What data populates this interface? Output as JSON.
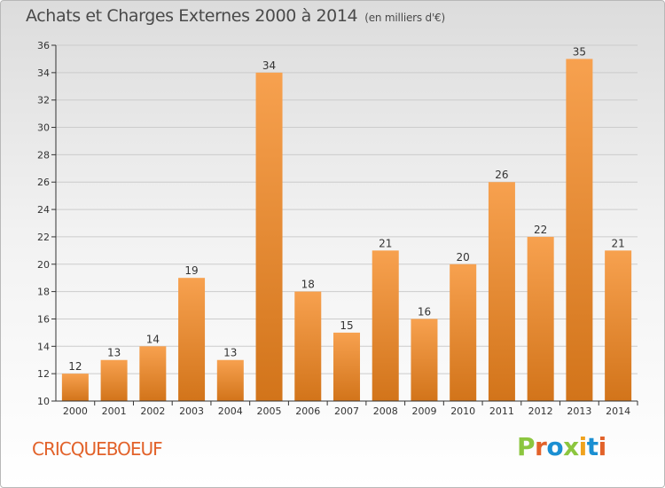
{
  "header": {
    "title": "Achats et Charges Externes 2000 à 2014",
    "unit": "(en milliers d'€)"
  },
  "footer": {
    "commune": "CRICQUEBOEUF",
    "logo": "Proxiti"
  },
  "colors": {
    "bar_top": "#f7a14f",
    "bar_bottom": "#d2741a",
    "axis": "#333333",
    "grid": "#cccccc",
    "commune": "#e2622a",
    "logo_letters": [
      "#8cc63f",
      "#e2622a",
      "#1b8fd2",
      "#8cc63f",
      "#f0a31f",
      "#1b8fd2",
      "#e2622a"
    ]
  },
  "chart_data": {
    "type": "bar",
    "title": "Achats et Charges Externes 2000 à 2014",
    "ylabel": "",
    "xlabel": "",
    "categories": [
      "2000",
      "2001",
      "2002",
      "2003",
      "2004",
      "2005",
      "2006",
      "2007",
      "2008",
      "2009",
      "2010",
      "2011",
      "2012",
      "2013",
      "2014"
    ],
    "values": [
      12,
      13,
      14,
      19,
      13,
      34,
      18,
      15,
      21,
      16,
      20,
      26,
      22,
      35,
      21
    ],
    "ylim": [
      10,
      36
    ],
    "yticks": [
      10,
      12,
      14,
      16,
      18,
      20,
      22,
      24,
      26,
      28,
      30,
      32,
      34,
      36
    ],
    "grid": true,
    "legend": "none"
  }
}
